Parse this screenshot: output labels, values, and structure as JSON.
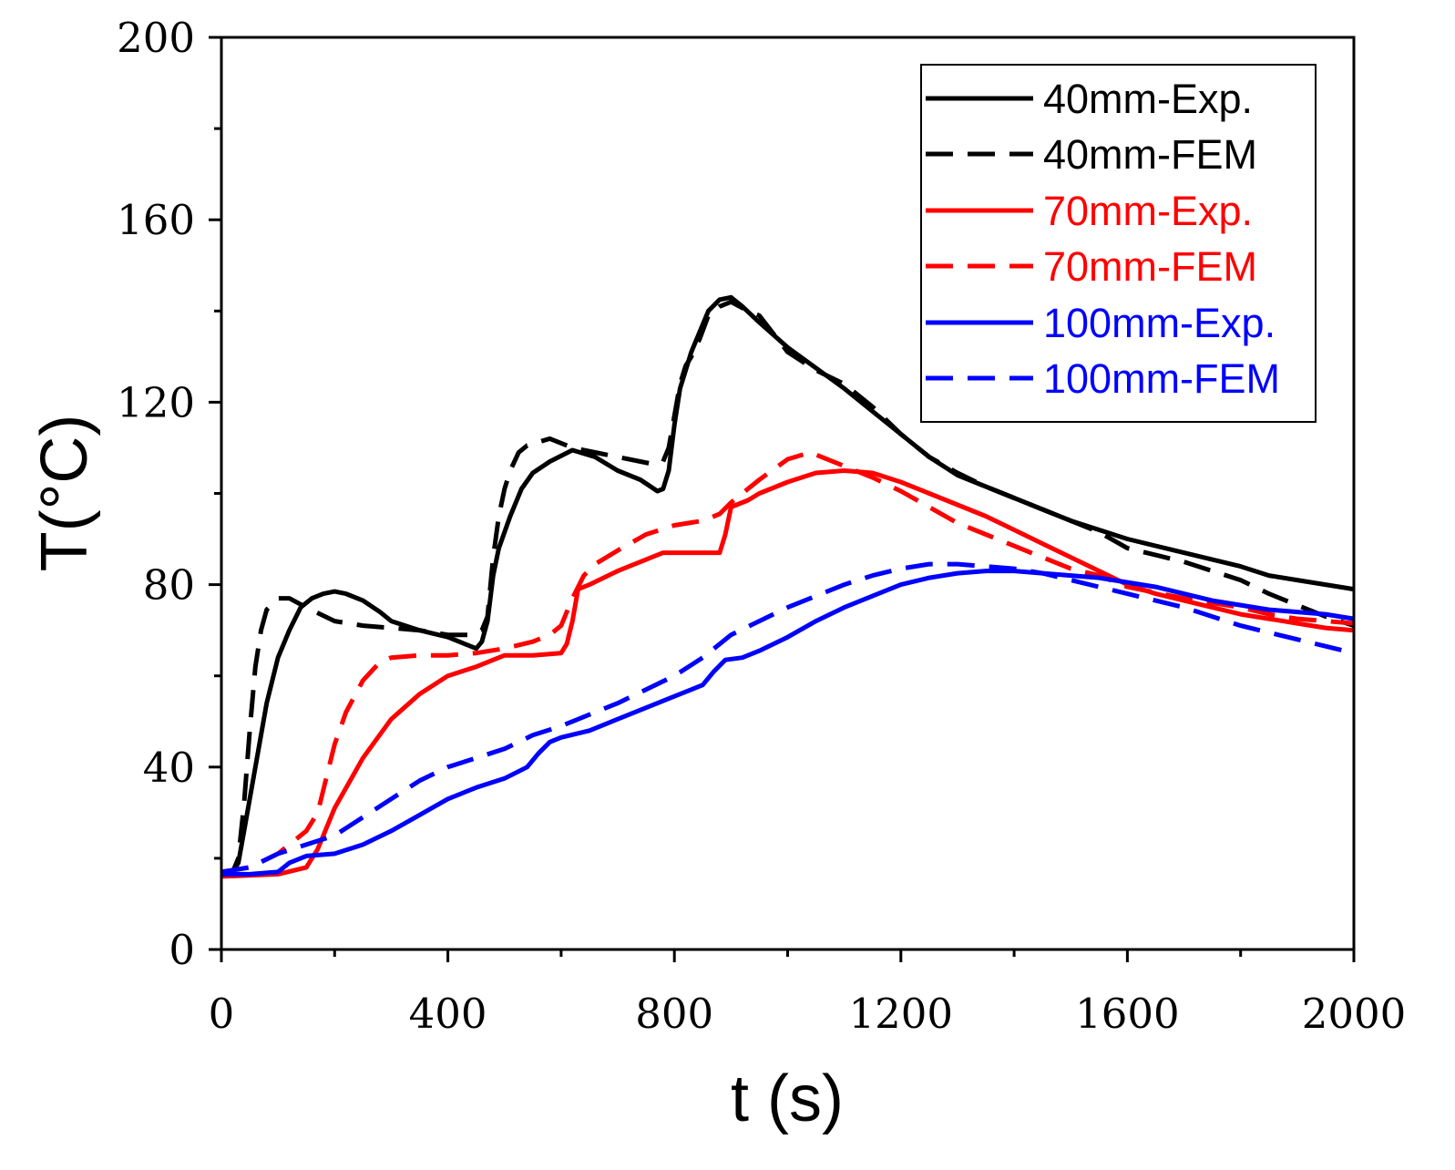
{
  "chart_data": {
    "type": "line",
    "title": "",
    "xlabel": "t (s)",
    "ylabel": "T(°C)",
    "xlim": [
      0,
      2000
    ],
    "ylim": [
      0,
      200
    ],
    "xticks": [
      0,
      400,
      800,
      1200,
      1600,
      2000
    ],
    "yticks": [
      0,
      40,
      80,
      120,
      160,
      200
    ],
    "xtick_labels": [
      "0",
      "400",
      "800",
      "1200",
      "1600",
      "2000"
    ],
    "ytick_labels": [
      "0",
      "40",
      "80",
      "120",
      "160",
      "200"
    ],
    "grid": false,
    "legend_position": "top-right",
    "series": [
      {
        "name": "40mm-Exp.",
        "color": "#000000",
        "style": "solid",
        "points": [
          [
            0,
            17
          ],
          [
            20,
            17
          ],
          [
            30,
            19
          ],
          [
            40,
            26
          ],
          [
            60,
            40
          ],
          [
            80,
            54
          ],
          [
            100,
            64
          ],
          [
            120,
            70
          ],
          [
            140,
            75
          ],
          [
            160,
            77
          ],
          [
            180,
            78
          ],
          [
            200,
            78.5
          ],
          [
            220,
            78
          ],
          [
            250,
            76.5
          ],
          [
            280,
            74
          ],
          [
            300,
            72
          ],
          [
            350,
            70
          ],
          [
            400,
            68.5
          ],
          [
            430,
            67
          ],
          [
            450,
            66
          ],
          [
            460,
            67.5
          ],
          [
            470,
            72
          ],
          [
            480,
            82
          ],
          [
            490,
            88
          ],
          [
            510,
            95
          ],
          [
            530,
            101
          ],
          [
            550,
            104.5
          ],
          [
            580,
            107
          ],
          [
            620,
            109.5
          ],
          [
            660,
            108
          ],
          [
            700,
            105
          ],
          [
            740,
            103
          ],
          [
            770,
            100.5
          ],
          [
            780,
            101
          ],
          [
            790,
            105
          ],
          [
            800,
            115
          ],
          [
            810,
            123
          ],
          [
            830,
            131
          ],
          [
            860,
            140
          ],
          [
            880,
            142.5
          ],
          [
            900,
            143
          ],
          [
            920,
            141
          ],
          [
            950,
            137.5
          ],
          [
            1000,
            132
          ],
          [
            1050,
            127.5
          ],
          [
            1100,
            123
          ],
          [
            1150,
            118
          ],
          [
            1200,
            113
          ],
          [
            1250,
            108
          ],
          [
            1300,
            104
          ],
          [
            1350,
            101.5
          ],
          [
            1400,
            99
          ],
          [
            1450,
            96.5
          ],
          [
            1500,
            94
          ],
          [
            1600,
            90
          ],
          [
            1700,
            87
          ],
          [
            1800,
            84
          ],
          [
            1850,
            82
          ],
          [
            1900,
            81
          ],
          [
            1950,
            80
          ],
          [
            2000,
            79
          ]
        ]
      },
      {
        "name": "40mm-FEM",
        "color": "#000000",
        "style": "dashed",
        "points": [
          [
            0,
            17
          ],
          [
            20,
            17
          ],
          [
            30,
            20
          ],
          [
            40,
            32
          ],
          [
            50,
            48
          ],
          [
            60,
            62
          ],
          [
            70,
            70
          ],
          [
            80,
            74.5
          ],
          [
            100,
            77
          ],
          [
            120,
            77
          ],
          [
            150,
            75
          ],
          [
            200,
            72
          ],
          [
            250,
            71
          ],
          [
            300,
            70.5
          ],
          [
            350,
            70
          ],
          [
            400,
            69
          ],
          [
            440,
            69
          ],
          [
            460,
            70
          ],
          [
            470,
            73
          ],
          [
            480,
            86
          ],
          [
            490,
            95
          ],
          [
            500,
            101
          ],
          [
            510,
            105
          ],
          [
            525,
            109
          ],
          [
            540,
            110.5
          ],
          [
            580,
            112
          ],
          [
            620,
            110
          ],
          [
            660,
            109
          ],
          [
            700,
            108
          ],
          [
            740,
            107
          ],
          [
            760,
            106.5
          ],
          [
            780,
            107
          ],
          [
            790,
            110
          ],
          [
            800,
            117
          ],
          [
            810,
            124
          ],
          [
            820,
            128
          ],
          [
            830,
            130
          ],
          [
            845,
            134
          ],
          [
            860,
            139
          ],
          [
            880,
            141
          ],
          [
            900,
            142
          ],
          [
            930,
            140
          ],
          [
            950,
            139
          ],
          [
            1000,
            131
          ],
          [
            1050,
            127
          ],
          [
            1100,
            124
          ],
          [
            1150,
            119
          ],
          [
            1200,
            113
          ],
          [
            1250,
            108
          ],
          [
            1300,
            104.5
          ],
          [
            1350,
            101.5
          ],
          [
            1400,
            99
          ],
          [
            1450,
            96.5
          ],
          [
            1500,
            94
          ],
          [
            1550,
            91.5
          ],
          [
            1600,
            88
          ],
          [
            1700,
            85
          ],
          [
            1800,
            81
          ],
          [
            1850,
            78
          ],
          [
            1900,
            75.5
          ],
          [
            1950,
            73
          ],
          [
            2000,
            71
          ]
        ]
      },
      {
        "name": "70mm-Exp.",
        "color": "#ff0000",
        "style": "solid",
        "points": [
          [
            0,
            16
          ],
          [
            100,
            16.5
          ],
          [
            150,
            18
          ],
          [
            170,
            22
          ],
          [
            200,
            31
          ],
          [
            250,
            42
          ],
          [
            300,
            50.5
          ],
          [
            350,
            56
          ],
          [
            400,
            60
          ],
          [
            450,
            62
          ],
          [
            480,
            63.5
          ],
          [
            500,
            64.5
          ],
          [
            550,
            64.5
          ],
          [
            600,
            65
          ],
          [
            610,
            67
          ],
          [
            620,
            72
          ],
          [
            630,
            79
          ],
          [
            650,
            80
          ],
          [
            700,
            83
          ],
          [
            750,
            85.5
          ],
          [
            780,
            87
          ],
          [
            800,
            87
          ],
          [
            850,
            87
          ],
          [
            880,
            87
          ],
          [
            890,
            91
          ],
          [
            900,
            97
          ],
          [
            930,
            98.5
          ],
          [
            950,
            100
          ],
          [
            1000,
            102.5
          ],
          [
            1050,
            104.5
          ],
          [
            1100,
            105
          ],
          [
            1150,
            104.5
          ],
          [
            1200,
            102.5
          ],
          [
            1250,
            100
          ],
          [
            1300,
            97.5
          ],
          [
            1350,
            95
          ],
          [
            1400,
            92
          ],
          [
            1450,
            89
          ],
          [
            1500,
            86
          ],
          [
            1550,
            83
          ],
          [
            1600,
            80
          ],
          [
            1650,
            78
          ],
          [
            1700,
            76.5
          ],
          [
            1750,
            75
          ],
          [
            1800,
            73.5
          ],
          [
            1850,
            72.5
          ],
          [
            1900,
            71.5
          ],
          [
            1950,
            70.5
          ],
          [
            2000,
            70
          ]
        ]
      },
      {
        "name": "70mm-FEM",
        "color": "#ff0000",
        "style": "dashed",
        "points": [
          [
            0,
            17
          ],
          [
            50,
            18
          ],
          [
            100,
            21
          ],
          [
            150,
            26
          ],
          [
            170,
            30
          ],
          [
            180,
            35
          ],
          [
            200,
            45
          ],
          [
            220,
            52
          ],
          [
            250,
            59
          ],
          [
            280,
            63
          ],
          [
            300,
            64
          ],
          [
            350,
            64.5
          ],
          [
            400,
            64.5
          ],
          [
            450,
            65
          ],
          [
            500,
            66
          ],
          [
            550,
            67.5
          ],
          [
            580,
            69
          ],
          [
            600,
            71
          ],
          [
            620,
            77
          ],
          [
            640,
            82
          ],
          [
            660,
            84.5
          ],
          [
            700,
            87.5
          ],
          [
            750,
            91
          ],
          [
            800,
            93
          ],
          [
            850,
            94
          ],
          [
            880,
            95.5
          ],
          [
            900,
            98
          ],
          [
            950,
            103
          ],
          [
            1000,
            107.5
          ],
          [
            1040,
            109
          ],
          [
            1100,
            106
          ],
          [
            1150,
            103.5
          ],
          [
            1200,
            100.5
          ],
          [
            1250,
            97
          ],
          [
            1300,
            93.5
          ],
          [
            1350,
            91
          ],
          [
            1400,
            88.5
          ],
          [
            1450,
            86
          ],
          [
            1500,
            83.5
          ],
          [
            1550,
            82
          ],
          [
            1600,
            79.5
          ],
          [
            1700,
            77
          ],
          [
            1800,
            75
          ],
          [
            1850,
            73.5
          ],
          [
            1900,
            72.5
          ],
          [
            1950,
            72
          ],
          [
            2000,
            71.5
          ]
        ]
      },
      {
        "name": "100mm-Exp.",
        "color": "#0000ff",
        "style": "solid",
        "points": [
          [
            0,
            16.5
          ],
          [
            50,
            16.5
          ],
          [
            100,
            17
          ],
          [
            120,
            19
          ],
          [
            150,
            20.5
          ],
          [
            200,
            21
          ],
          [
            250,
            23
          ],
          [
            300,
            26
          ],
          [
            350,
            29.5
          ],
          [
            400,
            33
          ],
          [
            450,
            35.5
          ],
          [
            500,
            37.5
          ],
          [
            540,
            40
          ],
          [
            560,
            43
          ],
          [
            580,
            45.5
          ],
          [
            600,
            46.5
          ],
          [
            650,
            48
          ],
          [
            700,
            50.5
          ],
          [
            750,
            53
          ],
          [
            800,
            55.5
          ],
          [
            850,
            58
          ],
          [
            870,
            61
          ],
          [
            890,
            63.5
          ],
          [
            920,
            64
          ],
          [
            950,
            65.5
          ],
          [
            1000,
            68.5
          ],
          [
            1050,
            72
          ],
          [
            1100,
            75
          ],
          [
            1150,
            77.5
          ],
          [
            1200,
            80
          ],
          [
            1250,
            81.5
          ],
          [
            1300,
            82.5
          ],
          [
            1350,
            83
          ],
          [
            1400,
            83
          ],
          [
            1450,
            82.5
          ],
          [
            1500,
            82
          ],
          [
            1550,
            81.5
          ],
          [
            1600,
            80.5
          ],
          [
            1650,
            79.5
          ],
          [
            1700,
            78
          ],
          [
            1750,
            76.5
          ],
          [
            1800,
            75.5
          ],
          [
            1850,
            74.5
          ],
          [
            1900,
            74
          ],
          [
            1950,
            73.5
          ],
          [
            2000,
            72.5
          ]
        ]
      },
      {
        "name": "100mm-FEM",
        "color": "#0000ff",
        "style": "dashed",
        "points": [
          [
            0,
            17
          ],
          [
            50,
            18
          ],
          [
            100,
            21
          ],
          [
            150,
            23
          ],
          [
            200,
            25
          ],
          [
            250,
            29
          ],
          [
            300,
            33
          ],
          [
            350,
            37
          ],
          [
            400,
            40
          ],
          [
            450,
            42
          ],
          [
            500,
            44
          ],
          [
            550,
            47
          ],
          [
            600,
            49
          ],
          [
            650,
            51.5
          ],
          [
            700,
            54
          ],
          [
            750,
            57
          ],
          [
            800,
            60
          ],
          [
            850,
            64
          ],
          [
            900,
            69
          ],
          [
            950,
            72
          ],
          [
            1000,
            75
          ],
          [
            1050,
            77.5
          ],
          [
            1100,
            80
          ],
          [
            1150,
            82
          ],
          [
            1200,
            83.5
          ],
          [
            1250,
            84.5
          ],
          [
            1300,
            84.5
          ],
          [
            1350,
            84
          ],
          [
            1400,
            83.5
          ],
          [
            1450,
            82.5
          ],
          [
            1500,
            81
          ],
          [
            1550,
            79.5
          ],
          [
            1600,
            78
          ],
          [
            1650,
            76.5
          ],
          [
            1700,
            75
          ],
          [
            1750,
            73
          ],
          [
            1800,
            71
          ],
          [
            1850,
            69.5
          ],
          [
            1900,
            68
          ],
          [
            1950,
            66.5
          ],
          [
            2000,
            65
          ]
        ]
      }
    ]
  }
}
